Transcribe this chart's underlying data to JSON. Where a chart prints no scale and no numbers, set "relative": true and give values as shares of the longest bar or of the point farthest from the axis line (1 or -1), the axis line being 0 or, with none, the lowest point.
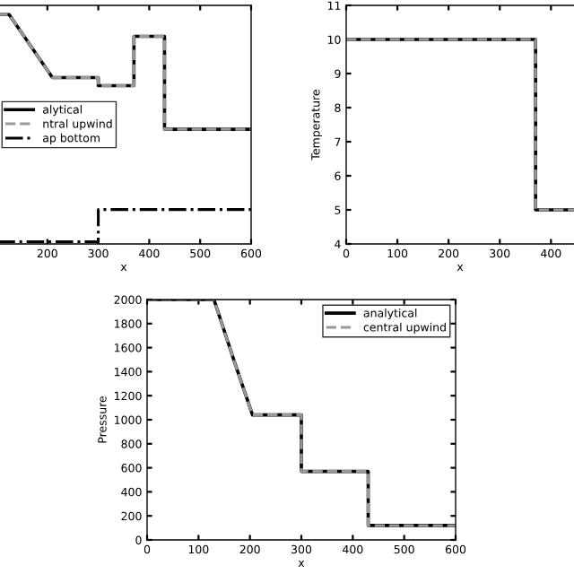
{
  "chart_data": [
    {
      "type": "line",
      "xlabel": "x",
      "relative": true,
      "xlim": [
        100,
        600
      ],
      "xticks": [
        200,
        300,
        400,
        500,
        600
      ],
      "legend": "left",
      "series": [
        {
          "name": "alytical",
          "color": "#000000",
          "line_style": "solid",
          "x": [
            100,
            125,
            210,
            300,
            300,
            370,
            370,
            430,
            430,
            600
          ],
          "values": [
            1,
            1,
            0.725,
            0.725,
            0.69,
            0.69,
            0.905,
            0.905,
            0.5,
            0.5
          ]
        },
        {
          "name": "ntral upwind",
          "color": "#999999",
          "line_style": "dashed",
          "x": [
            100,
            125,
            210,
            300,
            300,
            370,
            370,
            430,
            430,
            600
          ],
          "values": [
            1,
            1,
            0.725,
            0.725,
            0.69,
            0.69,
            0.905,
            0.905,
            0.5,
            0.5
          ]
        },
        {
          "name": "ap bottom",
          "color": "#000000",
          "line_style": "dashdot",
          "x": [
            100,
            300,
            300,
            600
          ],
          "values": [
            0.01,
            0.01,
            0.15,
            0.15
          ]
        }
      ]
    },
    {
      "type": "line",
      "xlabel": "x",
      "ylabel": "Temperature",
      "xlim": [
        0,
        445
      ],
      "ylim": [
        4,
        11
      ],
      "xticks": [
        0,
        100,
        200,
        300,
        400
      ],
      "yticks": [
        4,
        5,
        6,
        7,
        8,
        9,
        10,
        11
      ],
      "legend": false,
      "series": [
        {
          "color": "#000000",
          "line_style": "solid",
          "x": [
            0,
            370,
            370,
            445
          ],
          "values": [
            10,
            10,
            5,
            5
          ]
        },
        {
          "color": "#999999",
          "line_style": "dashed",
          "x": [
            0,
            370,
            370,
            445
          ],
          "values": [
            10,
            10,
            5,
            5
          ]
        }
      ]
    },
    {
      "type": "line",
      "xlabel": "x",
      "ylabel": "Pressure",
      "xlim": [
        0,
        600
      ],
      "ylim": [
        0,
        2000
      ],
      "xticks": [
        0,
        100,
        200,
        300,
        400,
        500,
        600
      ],
      "yticks": [
        0,
        200,
        400,
        600,
        800,
        1000,
        1200,
        1400,
        1600,
        1800,
        2000
      ],
      "legend": "top right",
      "series": [
        {
          "name": "analytical",
          "color": "#000000",
          "line_style": "solid",
          "x": [
            0,
            130,
            170,
            205,
            300,
            300,
            430,
            430,
            600
          ],
          "values": [
            2000,
            2000,
            1480,
            1040,
            1040,
            570,
            570,
            120,
            120
          ]
        },
        {
          "name": "central upwind",
          "color": "#999999",
          "line_style": "dashed",
          "x": [
            0,
            130,
            170,
            205,
            300,
            300,
            430,
            430,
            600
          ],
          "values": [
            2000,
            2000,
            1480,
            1040,
            1040,
            570,
            570,
            120,
            120
          ]
        }
      ]
    }
  ]
}
